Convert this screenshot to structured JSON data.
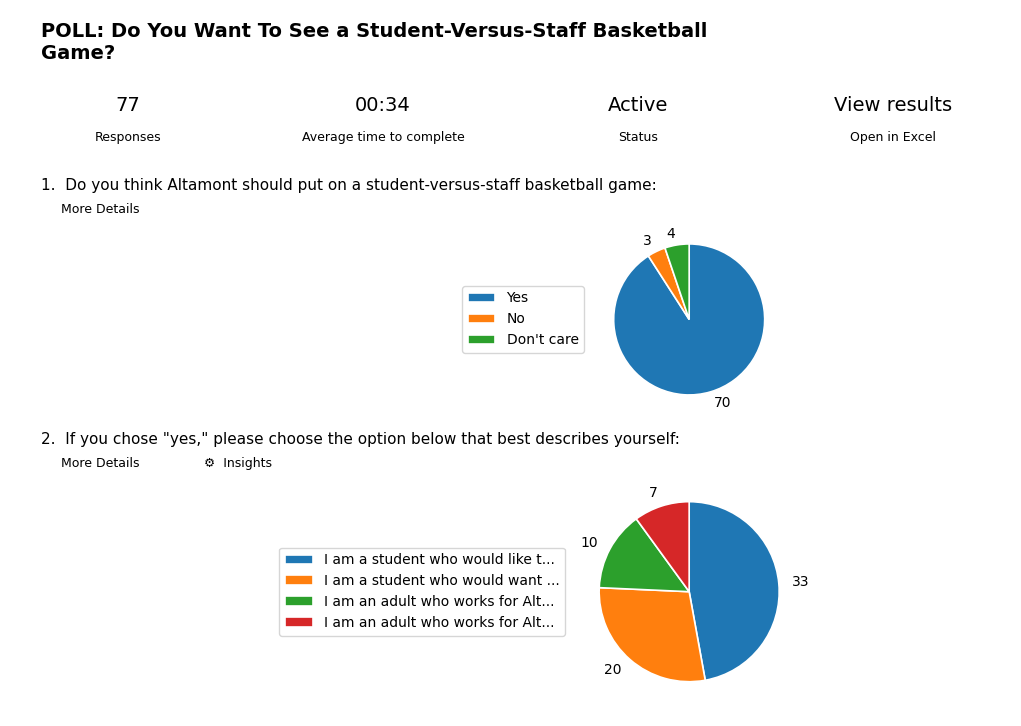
{
  "title": "POLL: Do You Want To See a Student-Versus-Staff Basketball\nGame?",
  "annotations": [
    "77",
    "Responses",
    "00:34",
    "Average time to complete",
    "Active",
    "Status",
    "View results",
    "Open in Excel"
  ],
  "chart_data": [
    {
      "type": "pie",
      "title": "1.  Do you think Altamont should put on a student-versus-staff basketball game:",
      "annotations": [
        "More Details"
      ],
      "categories": [
        "Yes",
        "No",
        "Don't care"
      ],
      "values": [
        70,
        3,
        4
      ],
      "legend": "center right",
      "data_labels": true
    },
    {
      "type": "pie",
      "title": "2.  If you chose \"yes,\" please choose the option below that best describes yourself:",
      "annotations": [
        "More Details",
        "⚙  Insights"
      ],
      "categories": [
        "I am a student who would like t...",
        "I am a student who would want ...",
        "I am an adult who works for Alt...",
        "I am an adult who works for Alt..."
      ],
      "values": [
        33,
        20,
        10,
        7
      ],
      "legend": "center right",
      "data_labels": true
    }
  ]
}
